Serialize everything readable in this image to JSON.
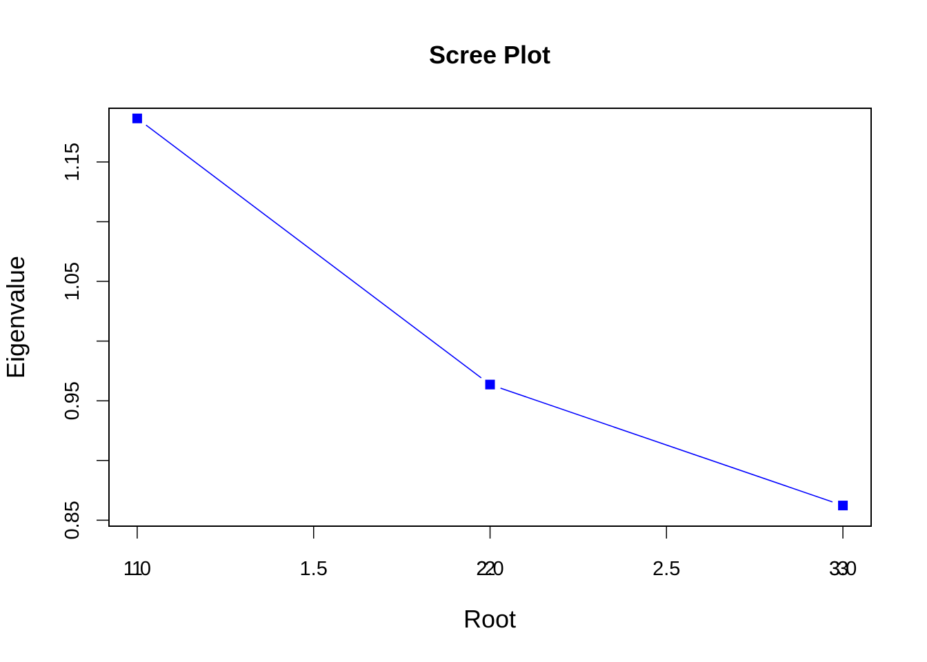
{
  "chart_data": {
    "type": "line",
    "title": "Scree Plot",
    "xlabel": "Root",
    "ylabel": "Eigenvalue",
    "x": [
      1,
      2,
      3
    ],
    "series": [
      {
        "values": [
          1.1865,
          0.9636,
          0.8623
        ],
        "color": "#0000ff",
        "marker": "square"
      }
    ],
    "point_labels": [
      "1",
      "2",
      "3"
    ],
    "xlim": [
      0.92,
      3.08
    ],
    "ylim": [
      0.845,
      1.195
    ],
    "x_ticks": [
      1,
      1.5,
      2,
      2.5,
      3
    ],
    "x_tick_labels": [
      "1",
      "1.5",
      "2",
      "2.5",
      "3"
    ],
    "x_tick_labels_overlap": [
      "1.0",
      "2.0",
      "3.0"
    ],
    "y_ticks": [
      0.85,
      0.9,
      0.95,
      1.0,
      1.05,
      1.1,
      1.15
    ],
    "y_tick_labels": [
      "0.85",
      "",
      "0.95",
      "",
      "1.05",
      "",
      "1.15"
    ],
    "grid": false,
    "legend": "none"
  }
}
